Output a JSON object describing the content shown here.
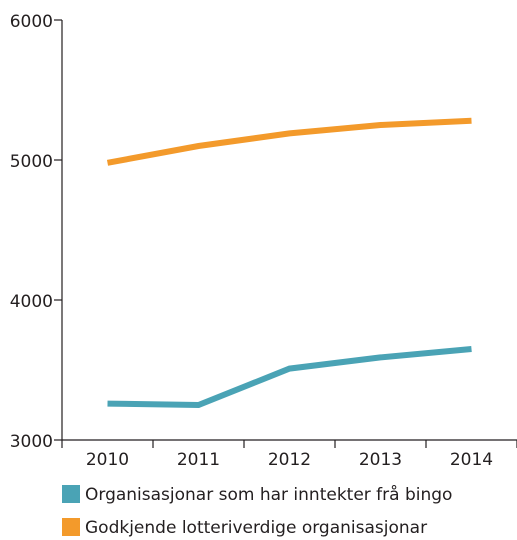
{
  "chart_data": {
    "type": "line",
    "categories": [
      "2010",
      "2011",
      "2012",
      "2013",
      "2014"
    ],
    "series": [
      {
        "name": "Organisasjonar som har inntekter frå bingo",
        "color": "#4aa3b5",
        "values": [
          3260,
          3250,
          3510,
          3590,
          3650
        ]
      },
      {
        "name": "Godkjende lotteriverdige organisasjonar",
        "color": "#f39a2b",
        "values": [
          4980,
          5100,
          5190,
          5250,
          5280
        ]
      }
    ],
    "ylim": [
      3000,
      6000
    ],
    "yticks": [
      3000,
      4000,
      5000,
      6000
    ],
    "grid": false,
    "legend": "bottom"
  }
}
